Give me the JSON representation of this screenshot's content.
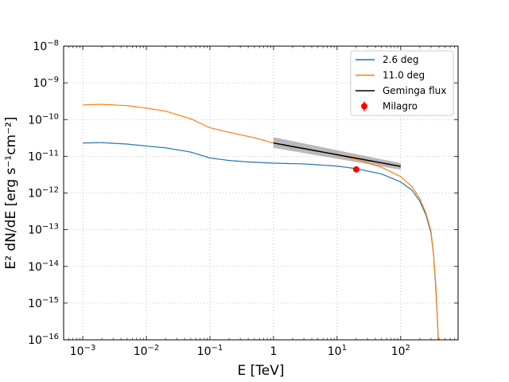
{
  "chart_data": {
    "type": "line",
    "xlabel": "E [TeV]",
    "ylabel": "E² dN/dE [erg s⁻¹cm⁻²]",
    "x_scale": "log",
    "y_scale": "log",
    "xlim": [
      0.0005,
      800
    ],
    "ylim": [
      1e-16,
      1e-08
    ],
    "grid": true,
    "legend_position": "top-right",
    "x_ticks": [
      {
        "base": "10",
        "exp": "−3",
        "value": 0.001
      },
      {
        "base": "10",
        "exp": "−2",
        "value": 0.01
      },
      {
        "base": "10",
        "exp": "−1",
        "value": 0.1
      },
      {
        "base": "1",
        "exp": "",
        "value": 1
      },
      {
        "base": "10",
        "exp": "1",
        "value": 10
      },
      {
        "base": "10",
        "exp": "2",
        "value": 100
      }
    ],
    "y_ticks": [
      {
        "base": "10",
        "exp": "−16",
        "value": 1e-16
      },
      {
        "base": "10",
        "exp": "−15",
        "value": 1e-15
      },
      {
        "base": "10",
        "exp": "−14",
        "value": 1e-14
      },
      {
        "base": "10",
        "exp": "−13",
        "value": 1e-13
      },
      {
        "base": "10",
        "exp": "−12",
        "value": 1e-12
      },
      {
        "base": "10",
        "exp": "−11",
        "value": 1e-11
      },
      {
        "base": "10",
        "exp": "−10",
        "value": 1e-10
      },
      {
        "base": "10",
        "exp": "−9",
        "value": 1e-09
      },
      {
        "base": "10",
        "exp": "−8",
        "value": 1e-08
      }
    ],
    "series": [
      {
        "name": "2.6 deg",
        "color": "#1f77b4",
        "points": [
          [
            0.001,
            2.3e-11
          ],
          [
            0.002,
            2.35e-11
          ],
          [
            0.005,
            2.15e-11
          ],
          [
            0.01,
            1.9e-11
          ],
          [
            0.02,
            1.7e-11
          ],
          [
            0.05,
            1.3e-11
          ],
          [
            0.1,
            9e-12
          ],
          [
            0.2,
            7.7e-12
          ],
          [
            0.4,
            7e-12
          ],
          [
            1,
            6.5e-12
          ],
          [
            3,
            6.2e-12
          ],
          [
            10,
            5.4e-12
          ],
          [
            20,
            4.6e-12
          ],
          [
            50,
            3.3e-12
          ],
          [
            100,
            2e-12
          ],
          [
            150,
            1.2e-12
          ],
          [
            200,
            6e-13
          ],
          [
            250,
            2.5e-13
          ],
          [
            300,
            8e-14
          ],
          [
            330,
            2e-14
          ],
          [
            360,
            2e-15
          ],
          [
            380,
            3e-16
          ],
          [
            390,
            1e-16
          ]
        ]
      },
      {
        "name": "11.0 deg",
        "color": "#ff7f0e",
        "points": [
          [
            0.001,
            2.5e-10
          ],
          [
            0.002,
            2.6e-10
          ],
          [
            0.005,
            2.4e-10
          ],
          [
            0.01,
            2.05e-10
          ],
          [
            0.02,
            1.7e-10
          ],
          [
            0.05,
            1.05e-10
          ],
          [
            0.1,
            6e-11
          ],
          [
            0.2,
            4.5e-11
          ],
          [
            0.5,
            3.2e-11
          ],
          [
            1,
            2.3e-11
          ],
          [
            2,
            1.8e-11
          ],
          [
            5,
            1.4e-11
          ],
          [
            10,
            1.1e-11
          ],
          [
            20,
            8.3e-12
          ],
          [
            50,
            5e-12
          ],
          [
            100,
            2.8e-12
          ],
          [
            150,
            1.5e-12
          ],
          [
            200,
            7e-13
          ],
          [
            250,
            2.8e-13
          ],
          [
            300,
            9e-14
          ],
          [
            330,
            2e-14
          ],
          [
            360,
            2.5e-15
          ],
          [
            380,
            3e-16
          ],
          [
            390,
            1e-16
          ]
        ]
      },
      {
        "name": "Geminga flux",
        "color": "#000000",
        "band_color": "#808080",
        "points": [
          [
            1,
            2.3e-11
          ],
          [
            100,
            5.3e-12
          ]
        ],
        "band_upper": [
          [
            1,
            3.3e-11
          ],
          [
            100,
            6.5e-12
          ]
        ],
        "band_lower": [
          [
            1,
            1.7e-11
          ],
          [
            100,
            4.3e-12
          ]
        ]
      },
      {
        "name": "Milagro",
        "color": "#ff0000",
        "type": "errorbar",
        "points": [
          [
            20,
            4.4e-12
          ]
        ],
        "yerr_low": [
          3.9e-12
        ],
        "yerr_high": [
          4.9e-12
        ]
      }
    ]
  }
}
